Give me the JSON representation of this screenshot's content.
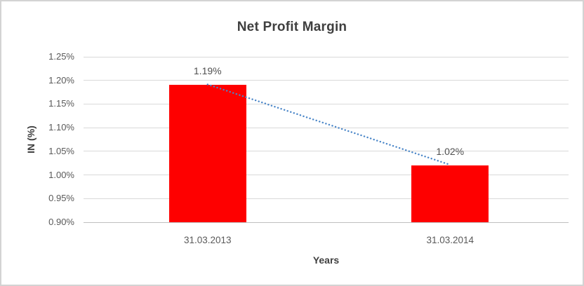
{
  "chart": {
    "colors": {
      "bar": "#fe0000",
      "trendline": "#4a86c8",
      "gridline": "#d9d9d9",
      "axis_line": "#bfbfbf",
      "title_text": "#3f3f3f",
      "tick_text": "#595959"
    }
  },
  "chart_data": {
    "type": "bar",
    "title": "Net Profit Margin",
    "xlabel": "Years",
    "ylabel": "IN (%)",
    "categories": [
      "31.03.2013",
      "31.03.2014"
    ],
    "values": [
      1.19,
      1.02
    ],
    "data_labels": [
      "1.19%",
      "1.02%"
    ],
    "ylim": [
      0.9,
      1.25
    ],
    "y_ticks": [
      0.9,
      0.95,
      1.0,
      1.05,
      1.1,
      1.15,
      1.2,
      1.25
    ],
    "y_tick_labels": [
      "0.90%",
      "0.95%",
      "1.00%",
      "1.05%",
      "1.10%",
      "1.15%",
      "1.20%",
      "1.25%"
    ],
    "grid": true,
    "legend": false,
    "series_name": "Net Profit Margin",
    "trendline": {
      "style": "dotted",
      "points": [
        1.19,
        1.02
      ]
    }
  }
}
